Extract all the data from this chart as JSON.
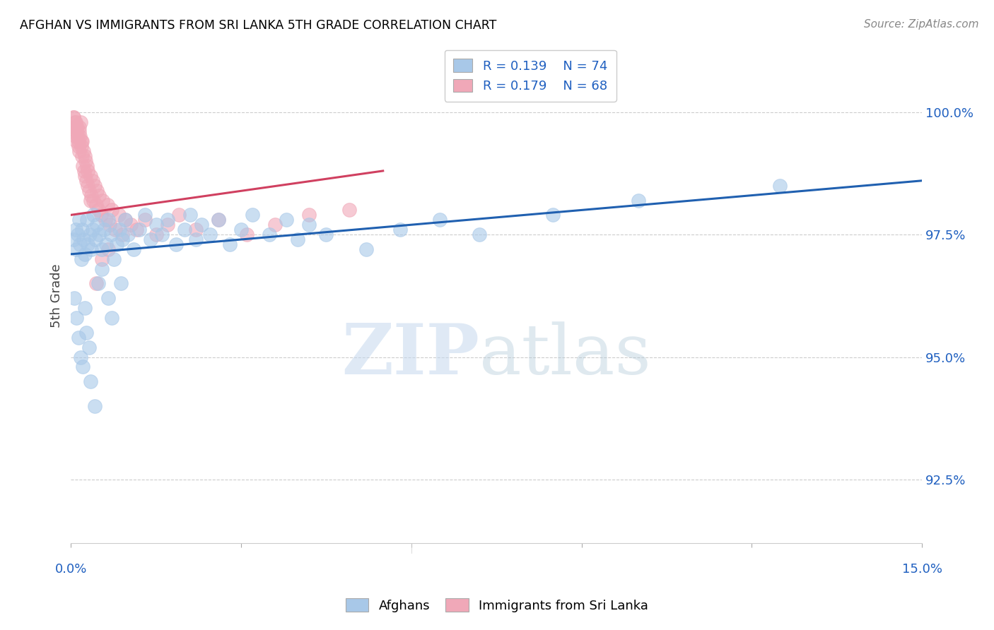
{
  "title": "AFGHAN VS IMMIGRANTS FROM SRI LANKA 5TH GRADE CORRELATION CHART",
  "source": "Source: ZipAtlas.com",
  "ylabel": "5th Grade",
  "watermark_zip": "ZIP",
  "watermark_atlas": "atlas",
  "xlim": [
    0.0,
    15.0
  ],
  "ylim": [
    91.2,
    101.3
  ],
  "yticks": [
    92.5,
    95.0,
    97.5,
    100.0
  ],
  "ytick_labels": [
    "92.5%",
    "95.0%",
    "97.5%",
    "100.0%"
  ],
  "legend_R_blue": "R = 0.139",
  "legend_N_blue": "N = 74",
  "legend_R_pink": "R = 0.179",
  "legend_N_pink": "N = 68",
  "blue_color": "#a8c8e8",
  "pink_color": "#f0a8b8",
  "line_blue": "#2060b0",
  "line_pink": "#d04060",
  "afghans_x": [
    0.05,
    0.08,
    0.1,
    0.12,
    0.14,
    0.16,
    0.18,
    0.2,
    0.22,
    0.25,
    0.28,
    0.3,
    0.33,
    0.36,
    0.38,
    0.4,
    0.43,
    0.46,
    0.5,
    0.54,
    0.58,
    0.62,
    0.66,
    0.7,
    0.75,
    0.8,
    0.85,
    0.9,
    0.95,
    1.0,
    1.1,
    1.2,
    1.3,
    1.4,
    1.5,
    1.6,
    1.7,
    1.85,
    2.0,
    2.1,
    2.2,
    2.3,
    2.45,
    2.6,
    2.8,
    3.0,
    3.2,
    3.5,
    3.8,
    4.0,
    4.2,
    4.5,
    5.2,
    5.8,
    6.5,
    7.2,
    8.5,
    10.0,
    12.5,
    0.06,
    0.09,
    0.13,
    0.17,
    0.21,
    0.24,
    0.27,
    0.32,
    0.35,
    0.42,
    0.48,
    0.55,
    0.65,
    0.72,
    0.88
  ],
  "afghans_y": [
    97.4,
    97.6,
    97.2,
    97.5,
    97.8,
    97.3,
    97.0,
    97.6,
    97.4,
    97.1,
    97.8,
    97.3,
    97.5,
    97.2,
    97.6,
    97.9,
    97.4,
    97.7,
    97.5,
    97.2,
    97.6,
    97.3,
    97.8,
    97.5,
    97.0,
    97.3,
    97.6,
    97.4,
    97.8,
    97.5,
    97.2,
    97.6,
    97.9,
    97.4,
    97.7,
    97.5,
    97.8,
    97.3,
    97.6,
    97.9,
    97.4,
    97.7,
    97.5,
    97.8,
    97.3,
    97.6,
    97.9,
    97.5,
    97.8,
    97.4,
    97.7,
    97.5,
    97.2,
    97.6,
    97.8,
    97.5,
    97.9,
    98.2,
    98.5,
    96.2,
    95.8,
    95.4,
    95.0,
    94.8,
    96.0,
    95.5,
    95.2,
    94.5,
    94.0,
    96.5,
    96.8,
    96.2,
    95.8,
    96.5
  ],
  "srilanka_x": [
    0.04,
    0.06,
    0.07,
    0.08,
    0.09,
    0.1,
    0.11,
    0.12,
    0.13,
    0.14,
    0.15,
    0.16,
    0.17,
    0.18,
    0.19,
    0.2,
    0.21,
    0.22,
    0.23,
    0.24,
    0.25,
    0.26,
    0.27,
    0.28,
    0.29,
    0.3,
    0.32,
    0.34,
    0.36,
    0.38,
    0.4,
    0.42,
    0.44,
    0.46,
    0.48,
    0.5,
    0.53,
    0.56,
    0.6,
    0.64,
    0.68,
    0.72,
    0.78,
    0.84,
    0.9,
    0.96,
    1.05,
    1.15,
    1.3,
    1.5,
    1.7,
    1.9,
    2.2,
    2.6,
    3.1,
    3.6,
    4.2,
    4.9,
    0.05,
    0.08,
    0.1,
    0.13,
    0.15,
    0.18,
    0.35,
    0.45,
    0.55,
    0.65
  ],
  "srilanka_y": [
    99.9,
    99.7,
    99.8,
    99.5,
    99.6,
    99.4,
    99.7,
    99.5,
    99.3,
    99.6,
    99.2,
    99.5,
    99.8,
    99.4,
    99.1,
    99.4,
    98.9,
    99.2,
    98.8,
    99.1,
    98.7,
    99.0,
    98.6,
    98.9,
    98.5,
    98.8,
    98.4,
    98.7,
    98.3,
    98.6,
    98.2,
    98.5,
    98.1,
    98.4,
    98.0,
    98.3,
    97.9,
    98.2,
    97.8,
    98.1,
    97.7,
    98.0,
    97.6,
    97.9,
    97.5,
    97.8,
    97.7,
    97.6,
    97.8,
    97.5,
    97.7,
    97.9,
    97.6,
    97.8,
    97.5,
    97.7,
    97.9,
    98.0,
    99.9,
    99.8,
    99.6,
    99.4,
    99.7,
    99.3,
    98.2,
    96.5,
    97.0,
    97.2
  ],
  "blue_trendline_x": [
    0.0,
    15.0
  ],
  "blue_trendline_y": [
    97.1,
    98.6
  ],
  "pink_trendline_x": [
    0.0,
    5.5
  ],
  "pink_trendline_y": [
    97.9,
    98.8
  ]
}
